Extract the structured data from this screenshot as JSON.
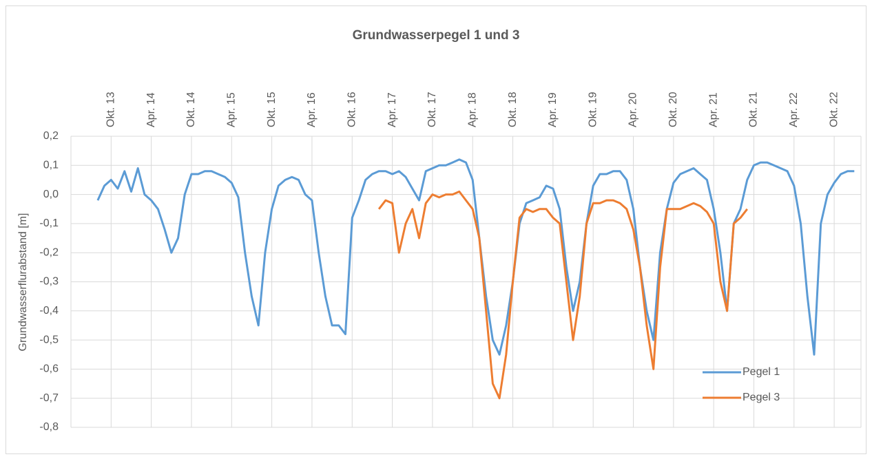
{
  "chart_data": {
    "type": "line",
    "title": "Grundwasserpegel 1 und 3",
    "y_label": "Grundwasserflurabstand [m]",
    "categories": [
      null,
      null,
      null,
      null,
      null,
      null,
      "Okt. 13",
      null,
      null,
      null,
      null,
      null,
      "Apr. 14",
      null,
      null,
      null,
      null,
      null,
      "Okt. 14",
      null,
      null,
      null,
      null,
      null,
      "Apr. 15",
      null,
      null,
      null,
      null,
      null,
      "Okt. 15",
      null,
      null,
      null,
      null,
      null,
      "Apr. 16",
      null,
      null,
      null,
      null,
      null,
      "Okt. 16",
      null,
      null,
      null,
      null,
      null,
      "Apr. 17",
      null,
      null,
      null,
      null,
      null,
      "Okt. 17",
      null,
      null,
      null,
      null,
      null,
      "Apr. 18",
      null,
      null,
      null,
      null,
      null,
      "Okt. 18",
      null,
      null,
      null,
      null,
      null,
      "Apr. 19",
      null,
      null,
      null,
      null,
      null,
      "Okt. 19",
      null,
      null,
      null,
      null,
      null,
      "Apr. 20",
      null,
      null,
      null,
      null,
      null,
      "Okt. 20",
      null,
      null,
      null,
      null,
      null,
      "Apr. 21",
      null,
      null,
      null,
      null,
      null,
      "Okt. 21",
      null,
      null,
      null,
      null,
      null,
      "Apr. 22",
      null,
      null,
      null,
      null,
      null,
      "Okt. 22",
      null,
      null,
      null,
      null
    ],
    "series": [
      {
        "name": "Pegel 1",
        "color": "#5b9bd5",
        "values": [
          null,
          null,
          null,
          null,
          -0.02,
          0.03,
          0.05,
          0.02,
          0.08,
          0.01,
          0.09,
          0.0,
          -0.02,
          -0.05,
          -0.12,
          -0.2,
          -0.15,
          0.0,
          0.07,
          0.07,
          0.08,
          0.08,
          0.07,
          0.06,
          0.04,
          -0.01,
          -0.2,
          -0.35,
          -0.45,
          -0.2,
          -0.05,
          0.03,
          0.05,
          0.06,
          0.05,
          0.0,
          -0.02,
          -0.2,
          -0.35,
          -0.45,
          -0.45,
          -0.48,
          -0.08,
          -0.02,
          0.05,
          0.07,
          0.08,
          0.08,
          0.07,
          0.08,
          0.06,
          0.02,
          -0.02,
          0.08,
          0.09,
          0.1,
          0.1,
          0.11,
          0.12,
          0.11,
          0.05,
          -0.15,
          -0.35,
          -0.5,
          -0.55,
          -0.45,
          -0.3,
          -0.1,
          -0.03,
          -0.02,
          -0.01,
          0.03,
          0.02,
          -0.05,
          -0.25,
          -0.4,
          -0.3,
          -0.1,
          0.03,
          0.07,
          0.07,
          0.08,
          0.08,
          0.05,
          -0.05,
          -0.25,
          -0.4,
          -0.5,
          -0.2,
          -0.05,
          0.04,
          0.07,
          0.08,
          0.09,
          0.07,
          0.05,
          -0.05,
          -0.2,
          -0.4,
          -0.1,
          -0.05,
          0.05,
          0.1,
          0.11,
          0.11,
          0.1,
          0.09,
          0.08,
          0.03,
          -0.1,
          -0.35,
          -0.55,
          -0.1,
          0.0,
          0.04,
          0.07,
          0.08,
          0.08,
          null
        ]
      },
      {
        "name": "Pegel 3",
        "color": "#ed7d31",
        "values": [
          null,
          null,
          null,
          null,
          null,
          null,
          null,
          null,
          null,
          null,
          null,
          null,
          null,
          null,
          null,
          null,
          null,
          null,
          null,
          null,
          null,
          null,
          null,
          null,
          null,
          null,
          null,
          null,
          null,
          null,
          null,
          null,
          null,
          null,
          null,
          null,
          null,
          null,
          null,
          null,
          null,
          null,
          null,
          null,
          null,
          null,
          -0.05,
          -0.02,
          -0.03,
          -0.2,
          -0.1,
          -0.05,
          -0.15,
          -0.03,
          0.0,
          -0.01,
          0.0,
          0.0,
          0.01,
          -0.02,
          -0.05,
          -0.15,
          -0.4,
          -0.65,
          -0.7,
          -0.55,
          -0.3,
          -0.08,
          -0.05,
          -0.06,
          -0.05,
          -0.05,
          -0.08,
          -0.1,
          -0.3,
          -0.5,
          -0.35,
          -0.1,
          -0.03,
          -0.03,
          -0.02,
          -0.02,
          -0.03,
          -0.05,
          -0.12,
          -0.25,
          -0.45,
          -0.6,
          -0.25,
          -0.05,
          -0.05,
          -0.05,
          -0.04,
          -0.03,
          -0.04,
          -0.06,
          -0.1,
          -0.3,
          -0.4,
          -0.1,
          -0.08,
          -0.05,
          null,
          null,
          null,
          null,
          null,
          null,
          null,
          null,
          null,
          null,
          null,
          null,
          null,
          null,
          null,
          null,
          null
        ]
      }
    ],
    "ylim": [
      -0.8,
      0.2
    ],
    "yticks": [
      {
        "value": 0.2,
        "label": "0,2"
      },
      {
        "value": 0.1,
        "label": "0,1"
      },
      {
        "value": 0,
        "label": "0,0"
      },
      {
        "value": -0.1,
        "label": "-0,1"
      },
      {
        "value": -0.2,
        "label": "-0,2"
      },
      {
        "value": -0.3,
        "label": "-0,3"
      },
      {
        "value": -0.4,
        "label": "-0,4"
      },
      {
        "value": -0.5,
        "label": "-0,5"
      },
      {
        "value": -0.6,
        "label": "-0,6"
      },
      {
        "value": -0.7,
        "label": "-0,7"
      },
      {
        "value": -0.8,
        "label": "-0,8"
      }
    ],
    "grid": true,
    "legend": "lower right"
  }
}
